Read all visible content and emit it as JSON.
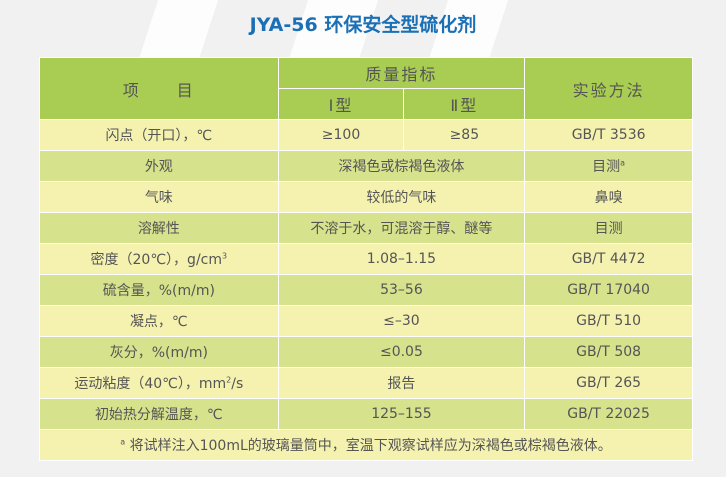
{
  "title": "JYA-56 环保安全型硫化剂",
  "header": {
    "item": "项　　目",
    "quality": "质量指标",
    "type1": "Ⅰ型",
    "type2": "Ⅱ型",
    "method": "实验方法"
  },
  "rows": [
    {
      "item": "闪点（开口），℃",
      "v1": "≥100",
      "v2": "≥85",
      "method": "GB/T 3536"
    },
    {
      "item": "外观",
      "value": "深褐色或棕褐色液体",
      "method": "目测",
      "method_sup": "a"
    },
    {
      "item": "气味",
      "value": "较低的气味",
      "method": "鼻嗅"
    },
    {
      "item": "溶解性",
      "value": "不溶于水，可混溶于醇、醚等",
      "method": "目测"
    },
    {
      "item": "密度（20℃），g/cm",
      "item_sup": "3",
      "value": "1.08–1.15",
      "method": "GB/T 4472"
    },
    {
      "item": "硫含量，%(m/m)",
      "value": "53–56",
      "method": "GB/T 17040"
    },
    {
      "item": "凝点，℃",
      "value": "≤–30",
      "method": "GB/T 510"
    },
    {
      "item": "灰分，%(m/m)",
      "value": "≤0.05",
      "method": "GB/T 508"
    },
    {
      "item": "运动粘度（40℃），mm",
      "item_sup": "2",
      "item_tail": "/s",
      "value": "报告",
      "method": "GB/T 265"
    },
    {
      "item": "初始热分解温度，℃",
      "value": "125–155",
      "method": "GB/T 22025"
    }
  ],
  "footnote": {
    "sup": "a",
    "text": "将试样注入100mL的玻璃量筒中，室温下观察试样应为深褐色或棕褐色液体。"
  },
  "colors": {
    "title": "#1a6fb5",
    "header": "#a9cc52",
    "row_light": "#f5f2b0",
    "row_dark": "#d6e28c"
  }
}
